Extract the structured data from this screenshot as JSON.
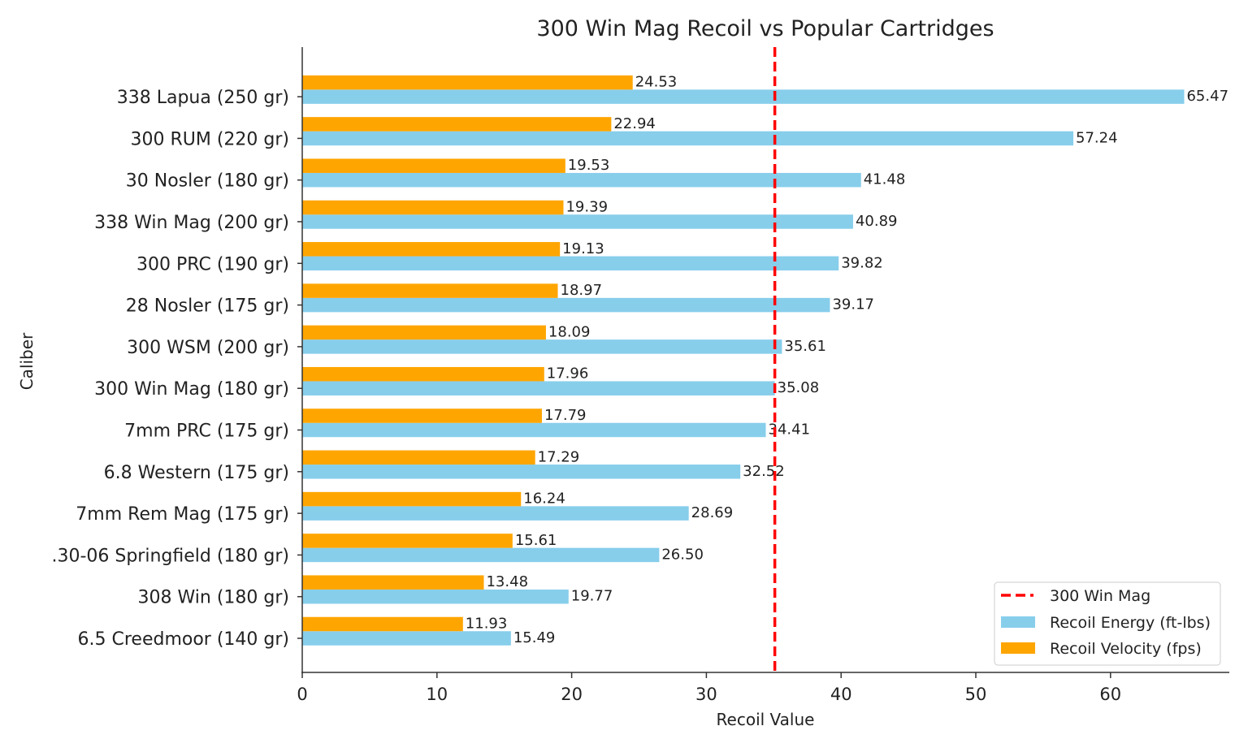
{
  "chart_data": {
    "type": "bar",
    "orientation": "horizontal",
    "title": "300 Win Mag Recoil vs Popular Cartridges",
    "xlabel": "Recoil Value",
    "ylabel": "Caliber",
    "xlim": [
      0,
      68.7
    ],
    "xticks": [
      0,
      10,
      20,
      30,
      40,
      50,
      60
    ],
    "grid": false,
    "legend_position": "bottom-right",
    "categories": [
      "6.5 Creedmoor (140 gr)",
      "308 Win (180 gr)",
      ".30-06 Springfield (180 gr)",
      "7mm Rem Mag (175 gr)",
      "6.8 Western (175 gr)",
      "7mm PRC (175 gr)",
      "300 Win Mag (180 gr)",
      "300 WSM (200 gr)",
      "28 Nosler (175 gr)",
      "300 PRC (190 gr)",
      "338 Win Mag (200 gr)",
      "30 Nosler (180 gr)",
      "300 RUM (220 gr)",
      "338 Lapua (250 gr)"
    ],
    "series": [
      {
        "name": "Recoil Energy (ft-lbs)",
        "color": "#87CEEB",
        "values": [
          15.49,
          19.77,
          26.5,
          28.69,
          32.52,
          34.41,
          35.08,
          35.61,
          39.17,
          39.82,
          40.89,
          41.48,
          57.24,
          65.47
        ]
      },
      {
        "name": "Recoil Velocity (fps)",
        "color": "#FFA500",
        "values": [
          11.93,
          13.48,
          15.61,
          16.24,
          17.29,
          17.79,
          17.96,
          18.09,
          18.97,
          19.13,
          19.39,
          19.53,
          22.94,
          24.53
        ]
      }
    ],
    "reference_line": {
      "name": "300 Win Mag",
      "value": 35.08,
      "color": "#FF0000",
      "style": "dashed"
    }
  }
}
